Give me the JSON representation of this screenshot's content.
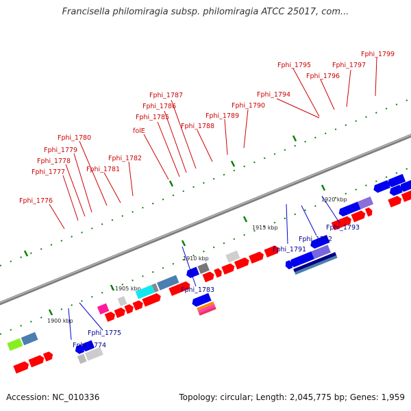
{
  "title": "Francisella philomiragia subsp. philomiragia ATCC 25017, com...",
  "footer": {
    "accession": "Accession: NC_010336",
    "summary": "Topology: circular; Length: 2,045,775 bp; Genes: 1,959"
  },
  "scale_labels": [
    "1900 kbp",
    "1905 kbp",
    "1910 kbp",
    "1915 kbp",
    "1920 kbp"
  ],
  "top_labels": [
    "Fphi_1776",
    "Fphi_1777",
    "Fphi_1778",
    "Fphi_1779",
    "Fphi_1780",
    "Fphi_1781",
    "Fphi_1782",
    "folE",
    "Fphi_1785",
    "Fphi_1786",
    "Fphi_1787",
    "Fphi_1788",
    "Fphi_1789",
    "Fphi_1790",
    "Fphi_1794",
    "Fphi_1795",
    "Fphi_1796",
    "Fphi_1797",
    "Fphi_1799"
  ],
  "bottom_labels": [
    "Fphi_1774",
    "Fphi_1775",
    "Fphi_1783",
    "Fphi_1791",
    "Fphi_1792",
    "Fphi_1793"
  ],
  "colors": {
    "forward_gene": "#ff0000",
    "reverse_gene": "#0000ee",
    "top_label": "#cc0000",
    "bottom_label": "#00008b",
    "backbone": "#888888",
    "scale_tick": "#008000"
  }
}
